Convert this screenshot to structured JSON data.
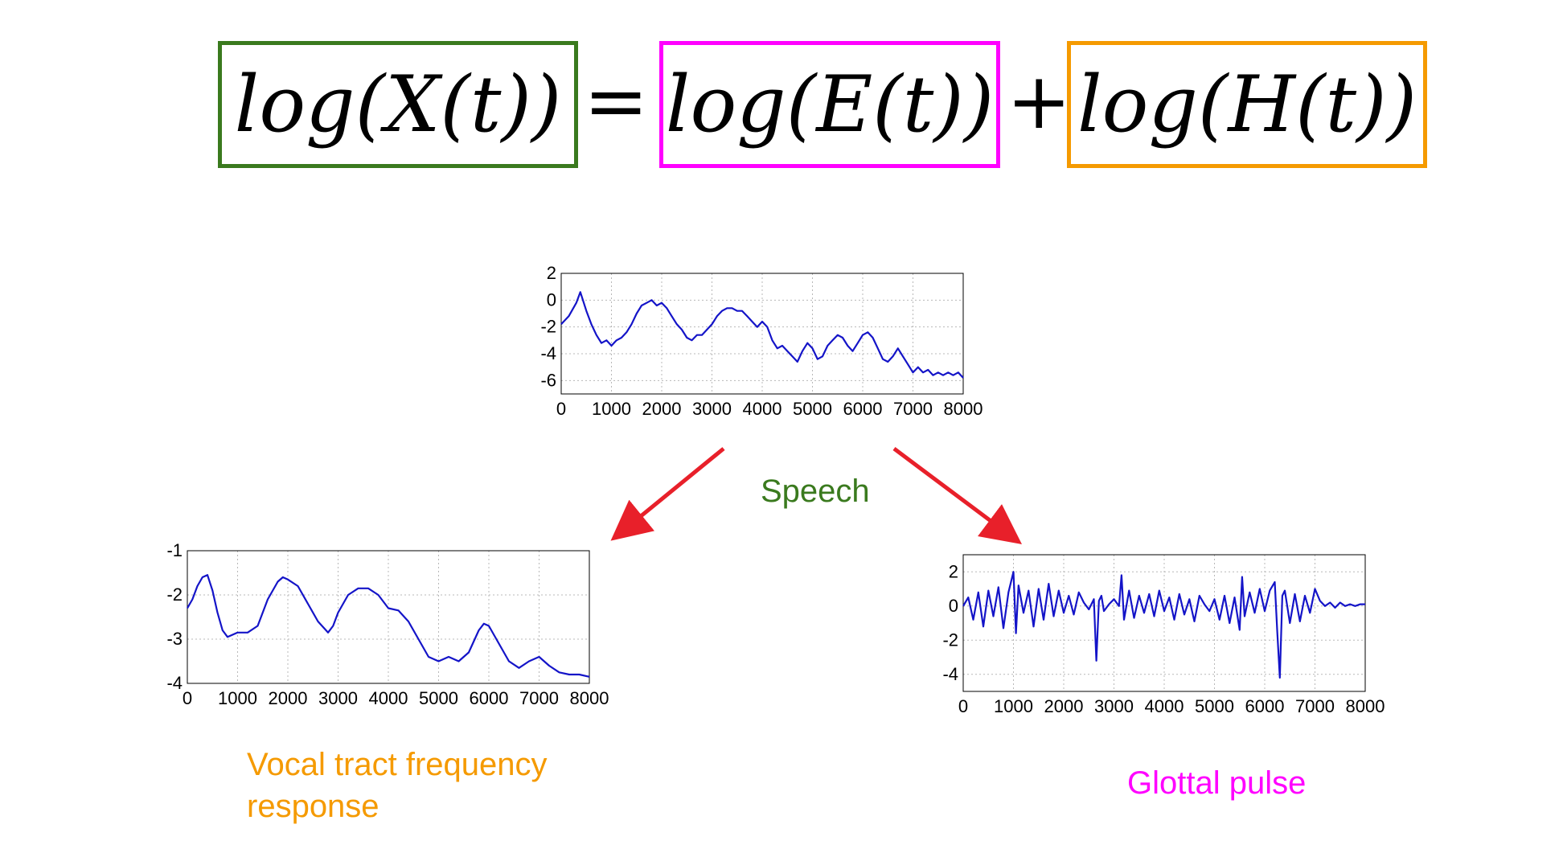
{
  "equation": {
    "lhs": "log(X(t))",
    "equals": "=",
    "term1": "log(E(t))",
    "plus": "+",
    "term2": "log(H(t))",
    "colors": {
      "lhs": "#3a7a1e",
      "term1": "#ff00ff",
      "term2": "#f59a00"
    }
  },
  "captions": {
    "speech": "Speech",
    "vocal": "Vocal tract frequency response",
    "glottal": "Glottal pulse"
  },
  "caption_colors": {
    "speech": "#3a7a1e",
    "vocal": "#f59a00",
    "glottal": "#ff00ff"
  },
  "arrow_color": "#e8202a",
  "chart_data": [
    {
      "id": "speech",
      "type": "line",
      "xlim": [
        0,
        8000
      ],
      "ylim": [
        -7,
        2
      ],
      "xticks": [
        0,
        1000,
        2000,
        3000,
        4000,
        5000,
        6000,
        7000,
        8000
      ],
      "yticks": [
        2,
        0,
        -2,
        -4,
        -6
      ],
      "grid": true,
      "line_color": "#1414c8",
      "x": [
        0,
        150,
        300,
        380,
        500,
        600,
        700,
        800,
        900,
        1000,
        1100,
        1200,
        1300,
        1400,
        1500,
        1600,
        1700,
        1800,
        1900,
        2000,
        2100,
        2200,
        2300,
        2400,
        2500,
        2600,
        2700,
        2800,
        2900,
        3000,
        3100,
        3200,
        3300,
        3400,
        3500,
        3600,
        3700,
        3800,
        3900,
        4000,
        4100,
        4200,
        4300,
        4400,
        4500,
        4600,
        4700,
        4800,
        4900,
        5000,
        5100,
        5200,
        5300,
        5400,
        5500,
        5600,
        5700,
        5800,
        5900,
        6000,
        6100,
        6200,
        6300,
        6400,
        6500,
        6600,
        6700,
        6800,
        6900,
        7000,
        7100,
        7200,
        7300,
        7400,
        7500,
        7600,
        7700,
        7800,
        7900,
        8000
      ],
      "values": [
        -1.8,
        -1.2,
        -0.2,
        0.6,
        -0.8,
        -1.8,
        -2.6,
        -3.2,
        -3.0,
        -3.4,
        -3.0,
        -2.8,
        -2.4,
        -1.8,
        -1.0,
        -0.4,
        -0.2,
        0.0,
        -0.4,
        -0.2,
        -0.6,
        -1.2,
        -1.8,
        -2.2,
        -2.8,
        -3.0,
        -2.6,
        -2.6,
        -2.2,
        -1.8,
        -1.2,
        -0.8,
        -0.6,
        -0.6,
        -0.8,
        -0.8,
        -1.2,
        -1.6,
        -2.0,
        -1.6,
        -2.0,
        -3.0,
        -3.6,
        -3.4,
        -3.8,
        -4.2,
        -4.6,
        -3.8,
        -3.2,
        -3.6,
        -4.4,
        -4.2,
        -3.4,
        -3.0,
        -2.6,
        -2.8,
        -3.4,
        -3.8,
        -3.2,
        -2.6,
        -2.4,
        -2.8,
        -3.6,
        -4.4,
        -4.6,
        -4.2,
        -3.6,
        -4.2,
        -4.8,
        -5.4,
        -5.0,
        -5.4,
        -5.2,
        -5.6,
        -5.4,
        -5.6,
        -5.4,
        -5.6,
        -5.4,
        -5.8
      ]
    },
    {
      "id": "vocal",
      "type": "line",
      "xlim": [
        0,
        8000
      ],
      "ylim": [
        -4,
        -1
      ],
      "xticks": [
        0,
        1000,
        2000,
        3000,
        4000,
        5000,
        6000,
        7000,
        8000
      ],
      "yticks": [
        -1,
        -2,
        -3,
        -4
      ],
      "grid": true,
      "line_color": "#1414c8",
      "x": [
        0,
        100,
        200,
        300,
        400,
        500,
        600,
        700,
        800,
        900,
        1000,
        1200,
        1400,
        1600,
        1800,
        1900,
        2000,
        2200,
        2400,
        2600,
        2800,
        2900,
        3000,
        3200,
        3400,
        3600,
        3800,
        4000,
        4200,
        4400,
        4600,
        4800,
        5000,
        5200,
        5400,
        5600,
        5800,
        5900,
        6000,
        6200,
        6400,
        6600,
        6800,
        7000,
        7200,
        7400,
        7600,
        7800,
        8000
      ],
      "values": [
        -2.3,
        -2.1,
        -1.8,
        -1.6,
        -1.55,
        -1.9,
        -2.4,
        -2.8,
        -2.95,
        -2.9,
        -2.85,
        -2.85,
        -2.7,
        -2.1,
        -1.7,
        -1.6,
        -1.65,
        -1.8,
        -2.2,
        -2.6,
        -2.85,
        -2.7,
        -2.4,
        -2.0,
        -1.85,
        -1.85,
        -2.0,
        -2.3,
        -2.35,
        -2.6,
        -3.0,
        -3.4,
        -3.5,
        -3.4,
        -3.5,
        -3.3,
        -2.8,
        -2.65,
        -2.7,
        -3.1,
        -3.5,
        -3.65,
        -3.5,
        -3.4,
        -3.6,
        -3.75,
        -3.8,
        -3.8,
        -3.85
      ]
    },
    {
      "id": "glottal",
      "type": "line",
      "xlim": [
        0,
        8000
      ],
      "ylim": [
        -5,
        3
      ],
      "xticks": [
        0,
        1000,
        2000,
        3000,
        4000,
        5000,
        6000,
        7000,
        8000
      ],
      "yticks": [
        2,
        0,
        -2,
        -4
      ],
      "grid": true,
      "line_color": "#1414c8",
      "x": [
        0,
        100,
        200,
        300,
        400,
        500,
        600,
        700,
        800,
        900,
        1000,
        1050,
        1100,
        1200,
        1300,
        1400,
        1500,
        1600,
        1700,
        1800,
        1900,
        2000,
        2100,
        2200,
        2300,
        2400,
        2500,
        2600,
        2650,
        2700,
        2750,
        2800,
        2900,
        3000,
        3100,
        3150,
        3200,
        3300,
        3400,
        3500,
        3600,
        3700,
        3800,
        3900,
        4000,
        4100,
        4200,
        4300,
        4400,
        4500,
        4600,
        4700,
        4800,
        4900,
        5000,
        5100,
        5200,
        5300,
        5400,
        5500,
        5550,
        5600,
        5700,
        5800,
        5900,
        6000,
        6100,
        6200,
        6250,
        6300,
        6350,
        6400,
        6500,
        6600,
        6700,
        6800,
        6900,
        7000,
        7100,
        7200,
        7300,
        7400,
        7500,
        7600,
        7700,
        7800,
        7900,
        8000
      ],
      "values": [
        0.0,
        0.5,
        -0.8,
        0.8,
        -1.2,
        0.9,
        -0.6,
        1.1,
        -1.3,
        0.8,
        2.0,
        -1.6,
        1.2,
        -0.4,
        0.9,
        -1.2,
        1.0,
        -0.8,
        1.3,
        -0.6,
        0.9,
        -0.4,
        0.6,
        -0.5,
        0.8,
        0.2,
        -0.2,
        0.4,
        -3.2,
        0.3,
        0.6,
        -0.3,
        0.1,
        0.4,
        0.0,
        1.8,
        -0.8,
        0.9,
        -0.7,
        0.6,
        -0.4,
        0.7,
        -0.6,
        0.9,
        -0.3,
        0.5,
        -0.8,
        0.7,
        -0.5,
        0.4,
        -0.9,
        0.6,
        0.1,
        -0.3,
        0.4,
        -0.8,
        0.6,
        -1.0,
        0.5,
        -1.4,
        1.7,
        -0.6,
        0.8,
        -0.4,
        1.0,
        -0.3,
        0.9,
        1.4,
        -1.5,
        -4.2,
        0.6,
        0.9,
        -1.0,
        0.7,
        -0.9,
        0.6,
        -0.4,
        1.0,
        0.3,
        0.0,
        0.2,
        -0.1,
        0.2,
        0.0,
        0.1,
        0.0,
        0.1,
        0.1
      ]
    }
  ]
}
